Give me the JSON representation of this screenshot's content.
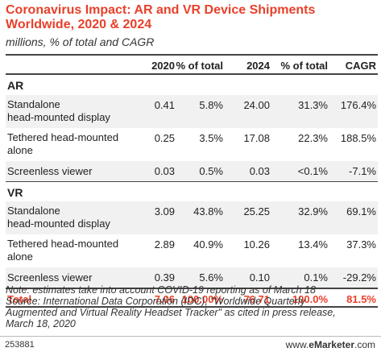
{
  "title": "Coronavirus Impact: AR and VR Device Shipments Worldwide, 2020 & 2024",
  "subtitle": "millions, % of total and CAGR",
  "colors": {
    "accent": "#e8402a",
    "row_alt": "#f1f1f1"
  },
  "columns": [
    "2020",
    "% of total",
    "2024",
    "% of total",
    "CAGR"
  ],
  "chart_data": {
    "type": "table",
    "title": "Coronavirus Impact: AR and VR Device Shipments Worldwide, 2020 & 2024",
    "subtitle": "millions, % of total and CAGR",
    "columns": [
      "2020",
      "% of total",
      "2024",
      "% of total",
      "CAGR"
    ],
    "sections": [
      {
        "name": "AR",
        "rows": [
          {
            "label_lines": [
              "Standalone",
              "head-mounted display"
            ],
            "values": [
              "0.41",
              "5.8%",
              "24.00",
              "31.3%",
              "176.4%"
            ]
          },
          {
            "label_lines": [
              "Tethered head-mounted",
              "alone"
            ],
            "values": [
              "0.25",
              "3.5%",
              "17.08",
              "22.3%",
              "188.5%"
            ]
          },
          {
            "label_lines": [
              "Screenless viewer"
            ],
            "values": [
              "0.03",
              "0.5%",
              "0.03",
              "<0.1%",
              "-7.1%"
            ]
          }
        ]
      },
      {
        "name": "VR",
        "rows": [
          {
            "label_lines": [
              "Standalone",
              "head-mounted display"
            ],
            "values": [
              "3.09",
              "43.8%",
              "25.25",
              "32.9%",
              "69.1%"
            ]
          },
          {
            "label_lines": [
              "Tethered head-mounted",
              "alone"
            ],
            "values": [
              "2.89",
              "40.9%",
              "10.26",
              "13.4%",
              "37.3%"
            ]
          },
          {
            "label_lines": [
              "Screenless viewer"
            ],
            "values": [
              "0.39",
              "5.6%",
              "0.10",
              "0.1%",
              "-29.2%"
            ]
          }
        ]
      }
    ],
    "total": {
      "label": "Total",
      "values": [
        "7.06",
        "100.00%",
        "76.71",
        "100.0%",
        "81.5%"
      ]
    }
  },
  "note_lines": [
    "Note: estimates take into account COVID-19 reporting as of March 18",
    "Source: International Data Corporation (IDC), \"Worldwide Quarterly",
    "Augmented and Virtual Reality Headset Tracker\" as cited in press release,",
    "March 18, 2020"
  ],
  "footer": {
    "chart_id": "253881",
    "brand_prefix": "www.",
    "brand_name": "eMarketer",
    "brand_suffix": ".com"
  }
}
